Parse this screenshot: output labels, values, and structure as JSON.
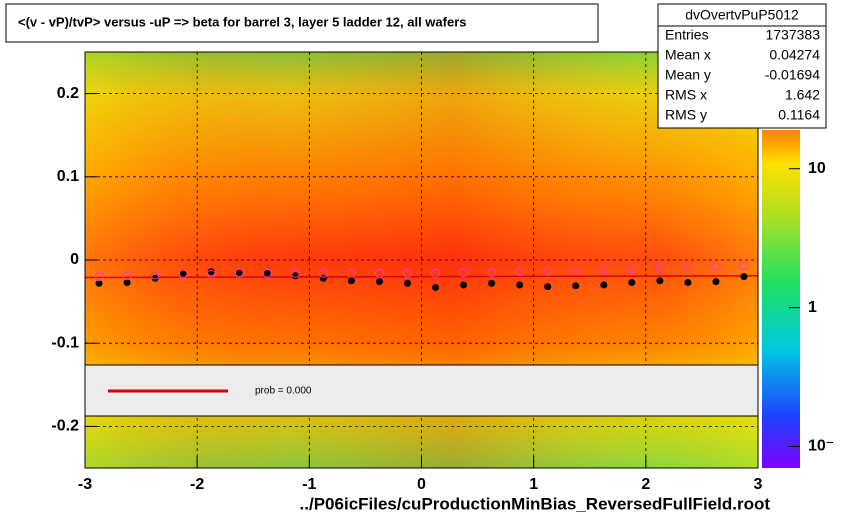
{
  "chart_data": {
    "type": "scatter",
    "title": "<(v - vP)/tvP>  versus  -uP => beta for barrel 3, layer 5 ladder 12, all wafers",
    "x_label": "../P06icFiles/cuProductionMinBias_ReversedFullField.root",
    "xlim": [
      -3,
      3
    ],
    "ylim": [
      -0.25,
      0.25
    ],
    "xticks": [
      -3,
      -2,
      -1,
      0,
      1,
      2,
      3
    ],
    "yticks": [
      -0.2,
      -0.1,
      0,
      0.1,
      0.2
    ],
    "grid": true,
    "x": [
      -2.875,
      -2.625,
      -2.375,
      -2.125,
      -1.875,
      -1.625,
      -1.375,
      -1.125,
      -0.875,
      -0.625,
      -0.375,
      -0.125,
      0.125,
      0.375,
      0.625,
      0.875,
      1.125,
      1.375,
      1.625,
      1.875,
      2.125,
      2.375,
      2.625,
      2.875
    ],
    "series": [
      {
        "color": "#000000",
        "values": [
          -0.028,
          -0.027,
          -0.022,
          -0.016,
          -0.014,
          -0.015,
          -0.016,
          -0.019,
          -0.022,
          -0.025,
          -0.026,
          -0.028,
          -0.033,
          -0.03,
          -0.028,
          -0.03,
          -0.032,
          -0.031,
          -0.03,
          -0.027,
          -0.025,
          -0.027,
          -0.026,
          -0.02
        ]
      },
      {
        "color": "#ff33cc",
        "values": [
          -0.02,
          -0.019,
          -0.018,
          -0.017,
          -0.017,
          -0.016,
          -0.016,
          -0.016,
          -0.016,
          -0.016,
          -0.016,
          -0.016,
          -0.016,
          -0.015,
          -0.015,
          -0.014,
          -0.014,
          -0.013,
          -0.012,
          -0.011,
          -0.01,
          -0.009,
          -0.008,
          -0.007
        ]
      }
    ],
    "fit": {
      "color": "#dd0000",
      "x": [
        -3,
        3
      ],
      "values": [
        -0.021,
        -0.019
      ]
    },
    "fit_legend": "prob = 0.000",
    "stats": {
      "name": "dvOvertvPuP5012",
      "rows": [
        [
          "Entries",
          "1737383"
        ],
        [
          "Mean x",
          "0.04274"
        ],
        [
          "Mean y",
          "-0.01694"
        ],
        [
          "RMS x",
          "1.642"
        ],
        [
          "RMS y",
          "0.1164"
        ]
      ]
    },
    "colorbar": {
      "log": true,
      "zlim": [
        0.07,
        19
      ],
      "ticks": [
        {
          "value": 10,
          "label": "10"
        },
        {
          "value": 1,
          "label": "1"
        },
        {
          "value": 0.1,
          "label": "10⁻"
        }
      ]
    }
  }
}
